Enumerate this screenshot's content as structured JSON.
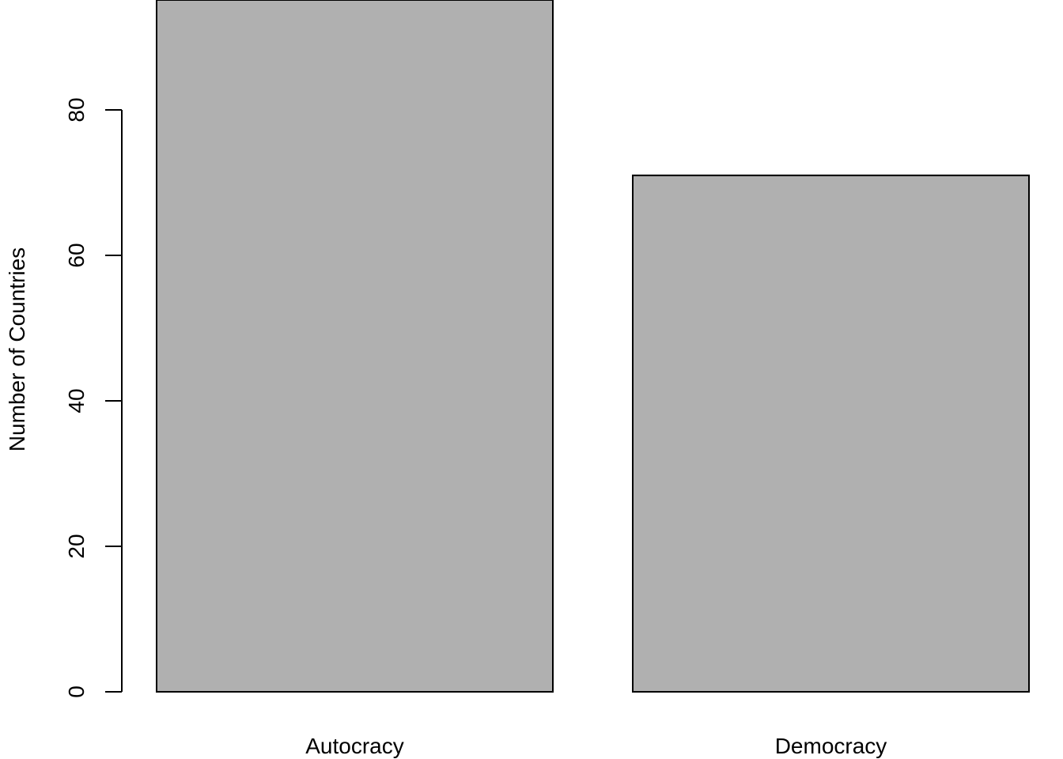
{
  "chart_data": {
    "type": "bar",
    "categories": [
      "Autocracy",
      "Democracy"
    ],
    "values": [
      96,
      71
    ],
    "title": "",
    "xlabel": "",
    "ylabel": "Number of Countries",
    "ylim": [
      0,
      96
    ],
    "yticks": [
      0,
      20,
      40,
      60,
      80
    ],
    "ytick_labels": [
      "0",
      "20",
      "40",
      "60",
      "80"
    ],
    "grid": false,
    "bar_color": "#b0b0b0",
    "bar_outline_color": "#000000",
    "notes_visible": "Autocracy bar extends beyond the top of the plotted area"
  }
}
